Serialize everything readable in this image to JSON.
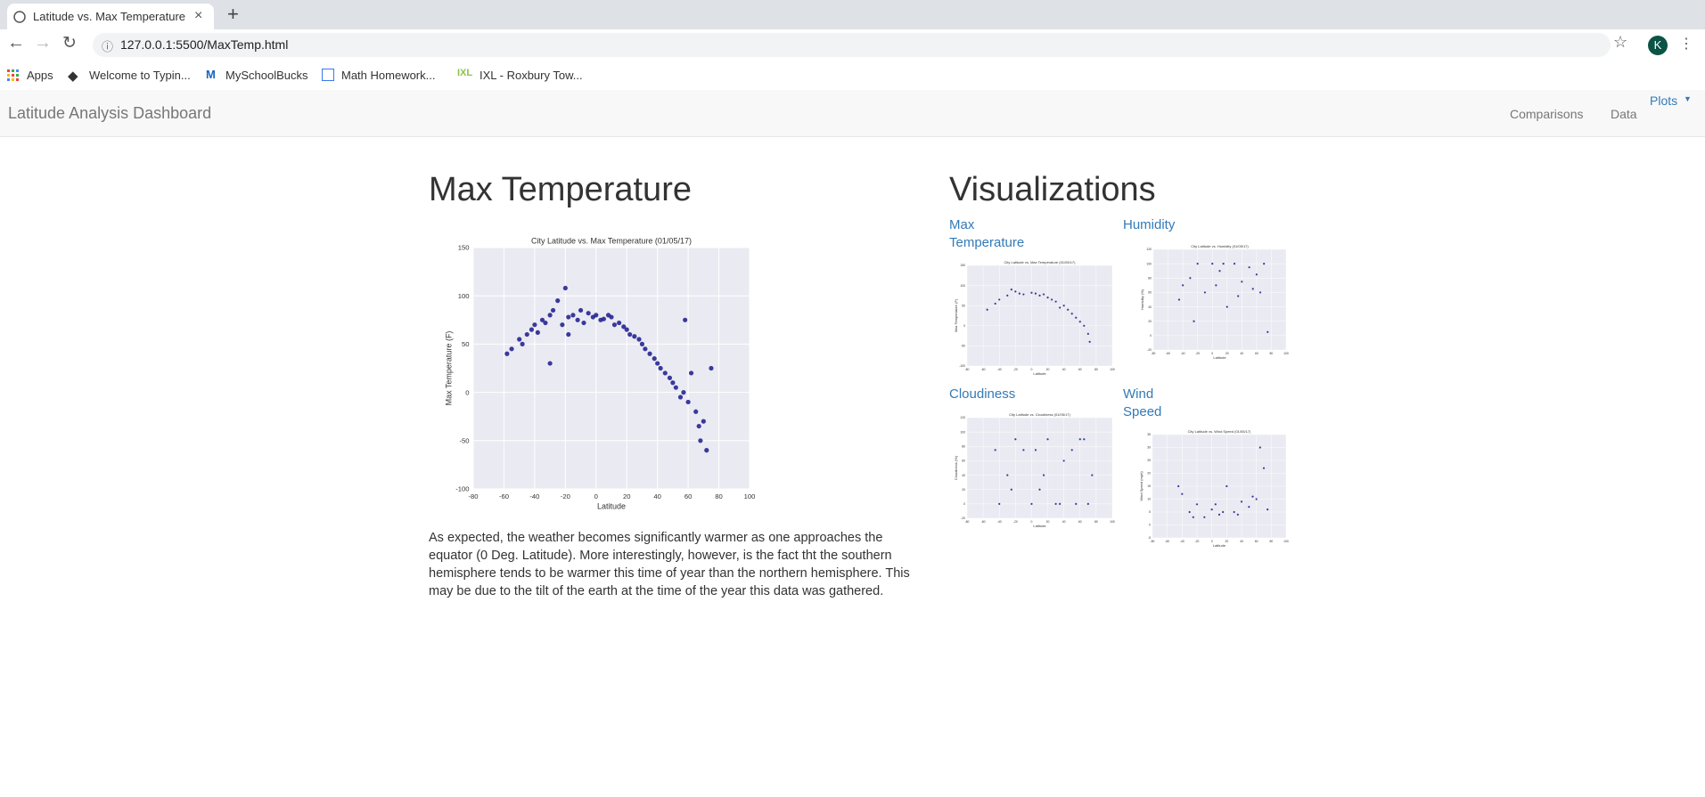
{
  "browser": {
    "tab_title": "Latitude vs. Max Temperature",
    "url": "127.0.0.1:5500/MaxTemp.html",
    "avatar": "K",
    "bookmarks": [
      "Apps",
      "Welcome to Typin...",
      "MySchoolBucks",
      "Math Homework...",
      "IXL - Roxbury Tow..."
    ]
  },
  "navbar": {
    "brand": "Latitude Analysis Dashboard",
    "links": [
      "Comparisons",
      "Data"
    ],
    "dropdown": "Plots"
  },
  "main": {
    "heading": "Max Temperature",
    "description": "As expected, the weather becomes significantly warmer as one approaches the equator (0 Deg. Latitude). More interestingly, however, is the fact tht the southern hemisphere tends to be warmer this time of year than the northern hemisphere. This may be due to the tilt of the earth at the time of the year this data was gathered."
  },
  "visualizations": {
    "heading": "Visualizations",
    "items": [
      "Max Temperature",
      "Humidity",
      "Cloudiness",
      "Wind Speed"
    ]
  },
  "chart_data": [
    {
      "type": "scatter",
      "title": "City Latitude vs. Max Temperature (01/05/17)",
      "x_label": "Latitude",
      "y_label": "Max Temperature (F)",
      "color": "#1a1a8c",
      "grid": true,
      "xlim": [
        -80,
        100
      ],
      "ylim": [
        -100,
        150
      ],
      "xticks": [
        -80,
        -60,
        -40,
        -20,
        0,
        20,
        40,
        60,
        80,
        100
      ],
      "yticks": [
        -100,
        -50,
        0,
        50,
        100,
        150
      ],
      "x": [
        -58,
        -55,
        -50,
        -48,
        -45,
        -42,
        -40,
        -38,
        -35,
        -33,
        -30,
        -28,
        -25,
        -22,
        -20,
        -18,
        -15,
        -12,
        -10,
        -8,
        -5,
        -2,
        0,
        3,
        5,
        8,
        10,
        12,
        15,
        18,
        20,
        22,
        25,
        28,
        30,
        32,
        35,
        38,
        40,
        42,
        45,
        48,
        50,
        52,
        55,
        57,
        60,
        62,
        65,
        67,
        68,
        70,
        72,
        75,
        58,
        -30,
        -18
      ],
      "y": [
        40,
        45,
        55,
        50,
        60,
        65,
        70,
        62,
        75,
        72,
        80,
        85,
        95,
        70,
        108,
        78,
        80,
        75,
        85,
        72,
        82,
        78,
        80,
        75,
        76,
        80,
        78,
        70,
        72,
        68,
        65,
        60,
        58,
        55,
        50,
        45,
        40,
        35,
        30,
        25,
        20,
        15,
        10,
        5,
        -5,
        0,
        -10,
        20,
        -20,
        -35,
        -50,
        -30,
        -60,
        25,
        75,
        30,
        60
      ]
    },
    {
      "type": "scatter",
      "title": "City Latitude vs. Max Temperature (01/05/17)",
      "x_label": "Latitude",
      "y_label": "Max Temperature (F)",
      "color": "#1a1a8c",
      "grid": true,
      "xlim": [
        -80,
        100
      ],
      "ylim": [
        -100,
        150
      ],
      "xticks": [
        -80,
        -60,
        -40,
        -20,
        0,
        20,
        40,
        60,
        80,
        100
      ],
      "yticks": [
        -100,
        -50,
        0,
        50,
        100,
        150
      ],
      "x": [
        -55,
        -45,
        -40,
        -30,
        -20,
        -15,
        -10,
        0,
        5,
        10,
        20,
        25,
        30,
        40,
        45,
        50,
        55,
        60,
        65,
        70,
        72,
        -25,
        15,
        35
      ],
      "y": [
        40,
        55,
        65,
        75,
        85,
        80,
        78,
        82,
        80,
        75,
        70,
        65,
        60,
        50,
        40,
        30,
        20,
        10,
        0,
        -20,
        -40,
        90,
        78,
        45
      ]
    },
    {
      "type": "scatter",
      "title": "City Latitude vs. Humidity (01/05/17)",
      "x_label": "Latitude",
      "y_label": "Humidity (%)",
      "color": "#1a1a8c",
      "grid": true,
      "xlim": [
        -80,
        100
      ],
      "ylim": [
        -20,
        120
      ],
      "xticks": [
        -80,
        -60,
        -40,
        -20,
        0,
        20,
        40,
        60,
        80,
        100
      ],
      "yticks": [
        -20,
        0,
        20,
        40,
        60,
        80,
        100,
        120
      ],
      "x": [
        -40,
        -30,
        -20,
        -10,
        0,
        10,
        20,
        30,
        40,
        50,
        60,
        70,
        75,
        -25,
        5,
        35,
        65,
        -45,
        15,
        55
      ],
      "y": [
        70,
        80,
        100,
        60,
        100,
        90,
        40,
        100,
        75,
        95,
        85,
        100,
        5,
        20,
        70,
        55,
        60,
        50,
        100,
        65
      ]
    },
    {
      "type": "scatter",
      "title": "City Latitude vs. Cloudiness (01/05/17)",
      "x_label": "Latitude",
      "y_label": "Cloudiness (%)",
      "color": "#1a1a8c",
      "grid": true,
      "xlim": [
        -80,
        100
      ],
      "ylim": [
        -20,
        120
      ],
      "xticks": [
        -80,
        -60,
        -40,
        -20,
        0,
        20,
        40,
        60,
        80,
        100
      ],
      "yticks": [
        -20,
        0,
        20,
        40,
        60,
        80,
        100,
        120
      ],
      "x": [
        -40,
        -30,
        -20,
        -10,
        0,
        10,
        20,
        30,
        40,
        50,
        60,
        70,
        75,
        -25,
        5,
        35,
        65,
        -45,
        15,
        55
      ],
      "y": [
        0,
        40,
        90,
        75,
        0,
        20,
        90,
        0,
        60,
        75,
        90,
        0,
        40,
        20,
        75,
        0,
        90,
        75,
        40,
        0
      ]
    },
    {
      "type": "scatter",
      "title": "City Latitude vs. Wind Speed (01/05/17)",
      "x_label": "Latitude",
      "y_label": "Wind Speed (mph)",
      "color": "#1a1a8c",
      "grid": true,
      "xlim": [
        -80,
        100
      ],
      "ylim": [
        -5,
        35
      ],
      "xticks": [
        -80,
        -60,
        -40,
        -20,
        0,
        20,
        40,
        60,
        80,
        100
      ],
      "yticks": [
        -5,
        0,
        5,
        10,
        15,
        20,
        25,
        30,
        35
      ],
      "x": [
        -40,
        -30,
        -20,
        -10,
        0,
        10,
        20,
        30,
        40,
        50,
        60,
        70,
        75,
        -25,
        5,
        35,
        65,
        -45,
        15,
        55
      ],
      "y": [
        12,
        5,
        8,
        3,
        6,
        4,
        15,
        5,
        9,
        7,
        10,
        22,
        6,
        3,
        8,
        4,
        30,
        15,
        5,
        11
      ]
    }
  ]
}
